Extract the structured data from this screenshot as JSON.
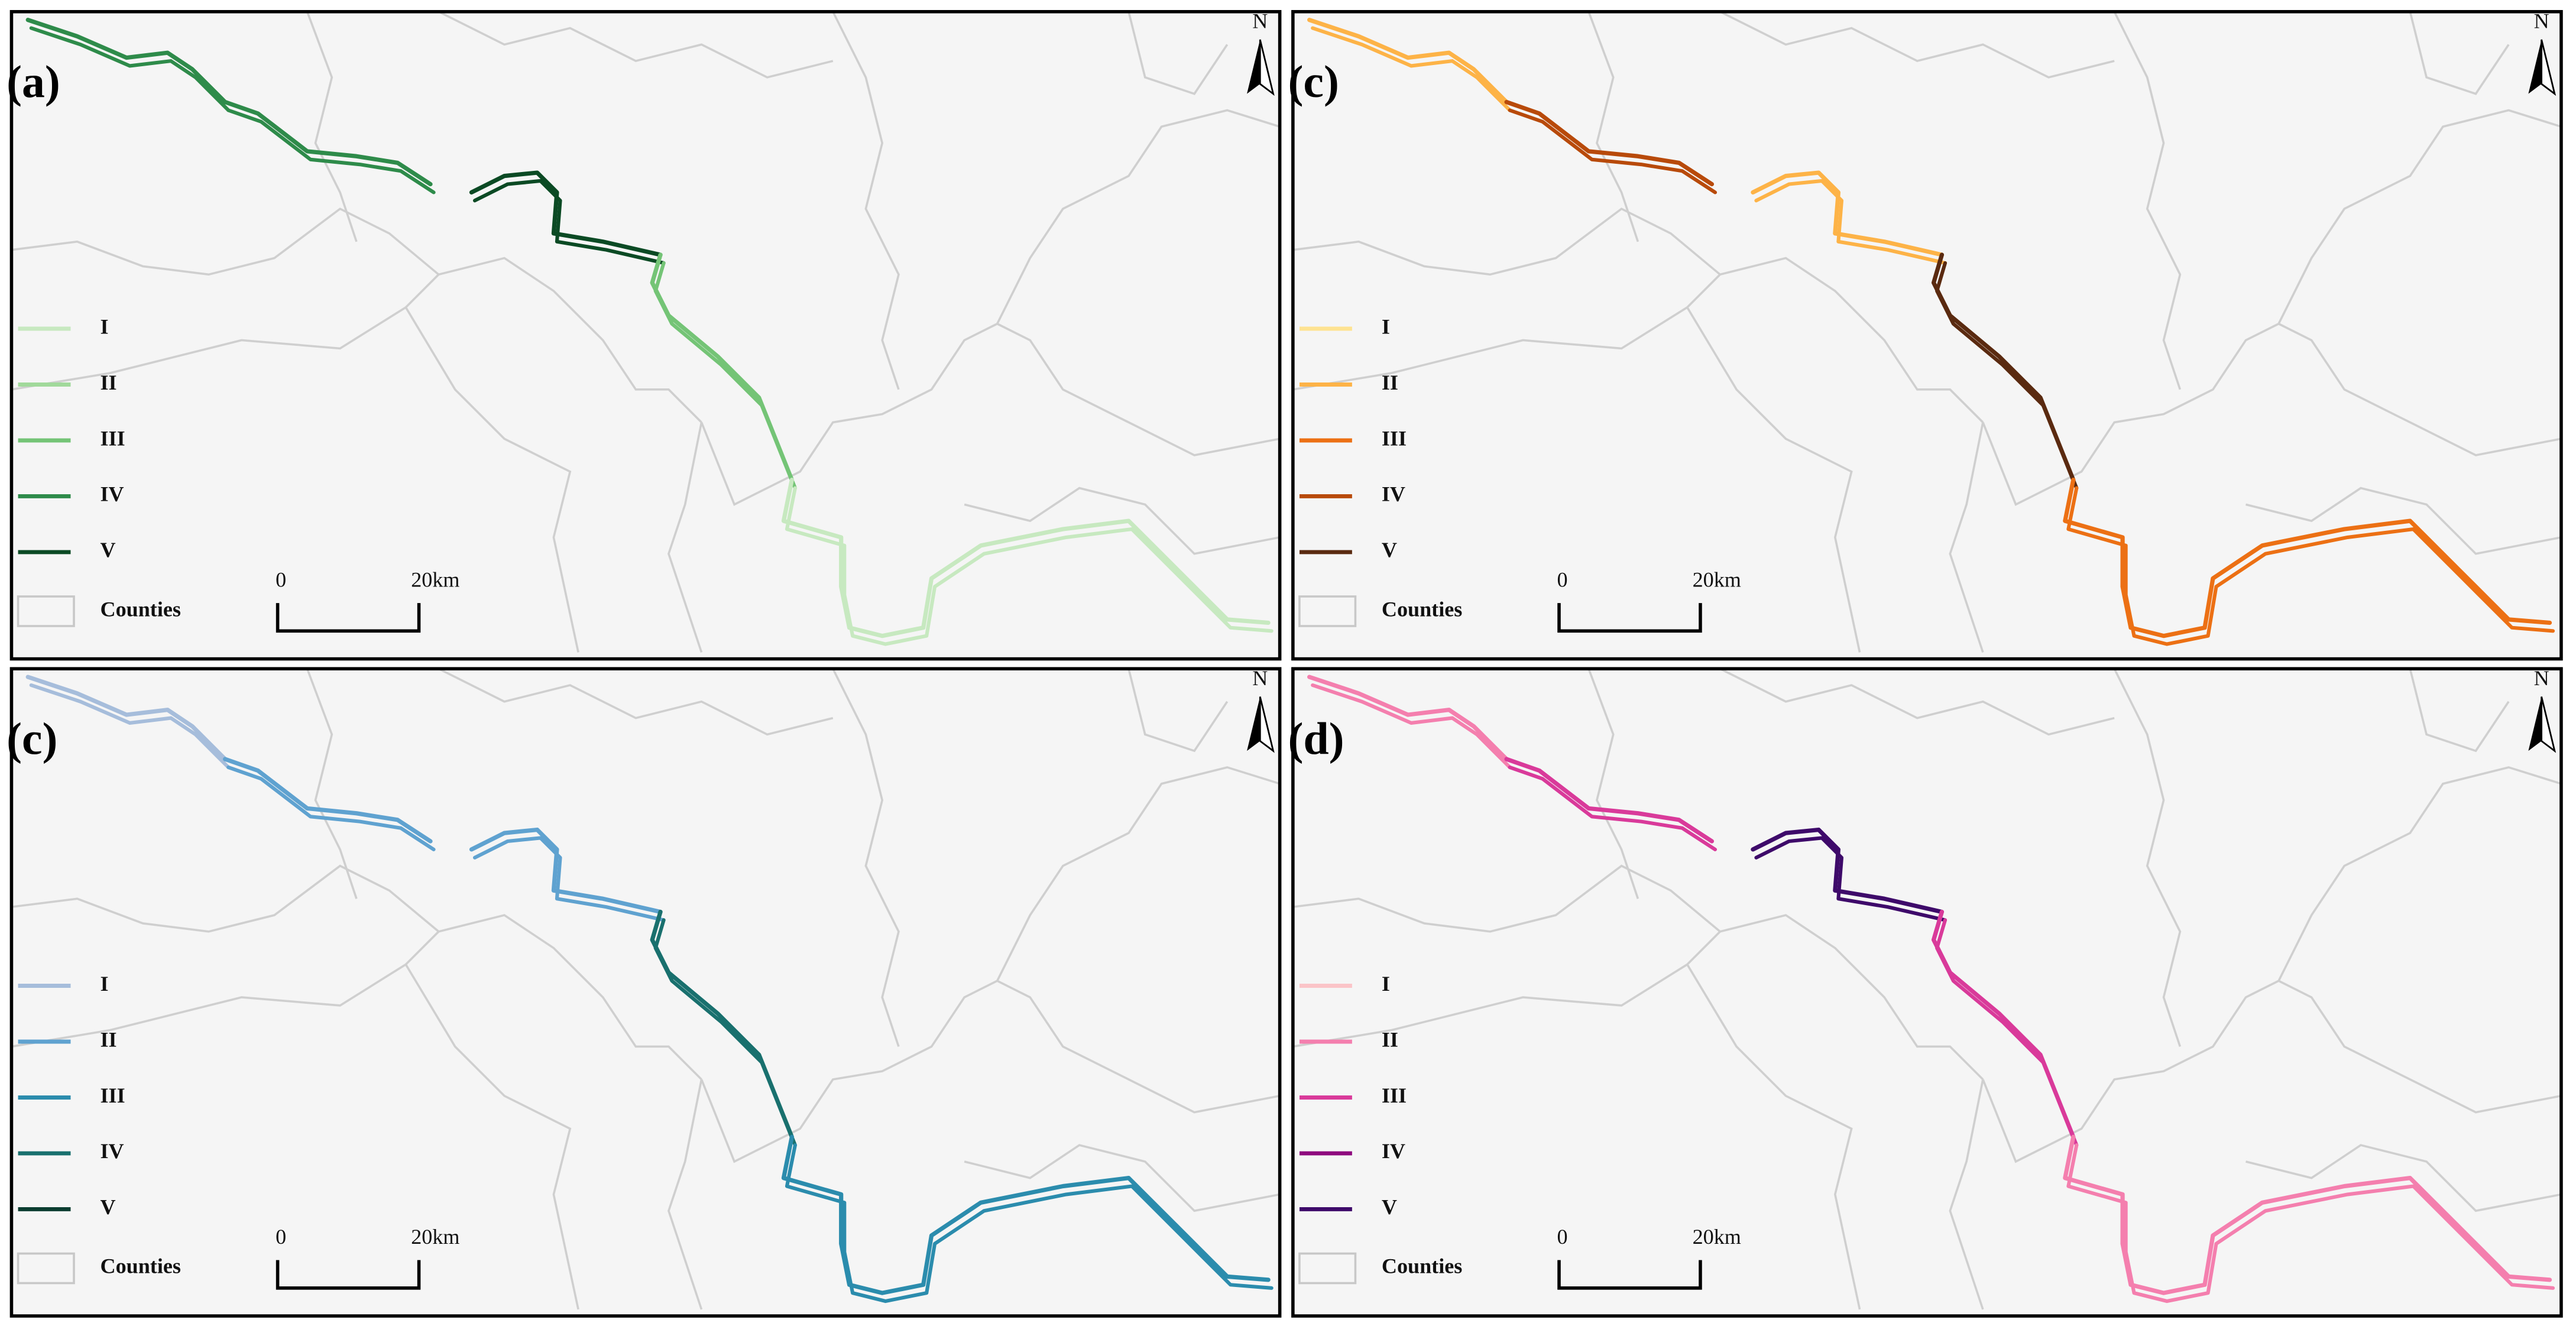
{
  "panels": [
    {
      "label": "(a)",
      "north": "N",
      "counties_label": "Counties",
      "scale": {
        "start": "0",
        "end": "20km"
      },
      "legend": [
        {
          "label": "I",
          "color": "#c7e9c0"
        },
        {
          "label": "II",
          "color": "#a1d99b"
        },
        {
          "label": "III",
          "color": "#74c476"
        },
        {
          "label": "IV",
          "color": "#2e8b4a"
        },
        {
          "label": "V",
          "color": "#0b4a24"
        }
      ]
    },
    {
      "label": "(c)",
      "north": "N",
      "counties_label": "Counties",
      "scale": {
        "start": "0",
        "end": "20km"
      },
      "legend": [
        {
          "label": "I",
          "color": "#fee391"
        },
        {
          "label": "II",
          "color": "#fdb347"
        },
        {
          "label": "III",
          "color": "#ec7014"
        },
        {
          "label": "IV",
          "color": "#b84a0a"
        },
        {
          "label": "V",
          "color": "#5a2a10"
        }
      ]
    },
    {
      "label": "(c)",
      "north": "N",
      "counties_label": "Counties",
      "scale": {
        "start": "0",
        "end": "20km"
      },
      "legend": [
        {
          "label": "I",
          "color": "#a6bddb"
        },
        {
          "label": "II",
          "color": "#5fa2d0"
        },
        {
          "label": "III",
          "color": "#2b8cad"
        },
        {
          "label": "IV",
          "color": "#19706e"
        },
        {
          "label": "V",
          "color": "#0b3d30"
        }
      ]
    },
    {
      "label": "(d)",
      "north": "N",
      "counties_label": "Counties",
      "scale": {
        "start": "0",
        "end": "20km"
      },
      "legend": [
        {
          "label": "I",
          "color": "#fbc4c8"
        },
        {
          "label": "II",
          "color": "#f47fae"
        },
        {
          "label": "III",
          "color": "#d93a9a"
        },
        {
          "label": "IV",
          "color": "#8e0a7e"
        },
        {
          "label": "V",
          "color": "#3e0a6a"
        }
      ]
    }
  ]
}
